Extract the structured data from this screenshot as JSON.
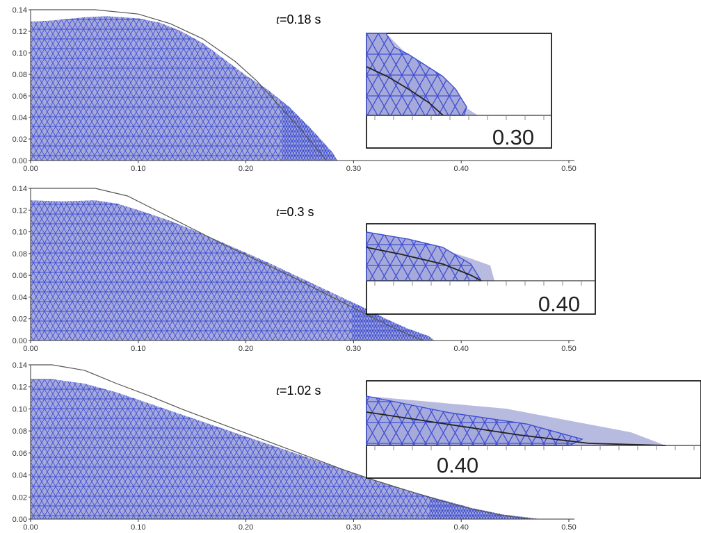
{
  "colors": {
    "fill": "#a6aadb",
    "mesh": "#3f4fd3",
    "inset_fill": "#b8bbe0",
    "reference_line": "#555555",
    "axis": "#333333"
  },
  "chart_data": [
    {
      "type": "area",
      "time_label": {
        "symbol": "t",
        "rest": "=0.18 s"
      },
      "x_ticks": [
        "0.00",
        "0.10",
        "0.20",
        "0.30",
        "0.40",
        "0.50"
      ],
      "y_ticks": [
        "0.00",
        "0.02",
        "0.04",
        "0.06",
        "0.08",
        "0.10",
        "0.12",
        "0.14"
      ],
      "xlim": [
        0,
        0.5
      ],
      "ylim": [
        0,
        0.14
      ],
      "series": [
        {
          "x": [
            0,
            0.02,
            0.05,
            0.07,
            0.1,
            0.12,
            0.14,
            0.16,
            0.18,
            0.2,
            0.22,
            0.24,
            0.26,
            0.28,
            0.285
          ],
          "y": [
            0.129,
            0.13,
            0.133,
            0.134,
            0.132,
            0.128,
            0.12,
            0.109,
            0.094,
            0.079,
            0.066,
            0.05,
            0.03,
            0.008,
            0
          ]
        },
        {
          "x": [
            0,
            0.06,
            0.1,
            0.13,
            0.16,
            0.19,
            0.21,
            0.23,
            0.25,
            0.265,
            0.275
          ],
          "y": [
            0.14,
            0.14,
            0.136,
            0.127,
            0.113,
            0.092,
            0.074,
            0.052,
            0.03,
            0.012,
            0
          ]
        }
      ],
      "inset": {
        "tick_label": "0.30"
      }
    },
    {
      "type": "area",
      "time_label": {
        "symbol": "t",
        "rest": "=0.3 s"
      },
      "x_ticks": [
        "0.00",
        "0.10",
        "0.20",
        "0.30",
        "0.40",
        "0.50"
      ],
      "y_ticks": [
        "0.00",
        "0.02",
        "0.04",
        "0.06",
        "0.08",
        "0.10",
        "0.12",
        "0.14"
      ],
      "xlim": [
        0,
        0.5
      ],
      "ylim": [
        0,
        0.14
      ],
      "series": [
        {
          "x": [
            0,
            0.03,
            0.06,
            0.08,
            0.1,
            0.13,
            0.16,
            0.19,
            0.22,
            0.25,
            0.28,
            0.31,
            0.33,
            0.35,
            0.37,
            0.375
          ],
          "y": [
            0.129,
            0.128,
            0.129,
            0.126,
            0.12,
            0.11,
            0.098,
            0.085,
            0.072,
            0.058,
            0.044,
            0.03,
            0.02,
            0.011,
            0.004,
            0
          ]
        },
        {
          "x": [
            0,
            0.06,
            0.09,
            0.12,
            0.15,
            0.18,
            0.21,
            0.24,
            0.27,
            0.3,
            0.33,
            0.35,
            0.365
          ],
          "y": [
            0.14,
            0.14,
            0.133,
            0.118,
            0.103,
            0.088,
            0.074,
            0.06,
            0.045,
            0.03,
            0.015,
            0.006,
            0
          ]
        }
      ],
      "inset": {
        "tick_label": "0.40"
      }
    },
    {
      "type": "area",
      "time_label": {
        "symbol": "t",
        "rest": "=1.02 s"
      },
      "x_ticks": [
        "0.00",
        "0.10",
        "0.20",
        "0.30",
        "0.40",
        "0.50"
      ],
      "y_ticks": [
        "0.00",
        "0.02",
        "0.04",
        "0.06",
        "0.08",
        "0.10",
        "0.12",
        "0.14"
      ],
      "xlim": [
        0,
        0.5
      ],
      "ylim": [
        0,
        0.14
      ],
      "series": [
        {
          "x": [
            0,
            0.02,
            0.05,
            0.08,
            0.11,
            0.14,
            0.17,
            0.2,
            0.23,
            0.26,
            0.29,
            0.32,
            0.35,
            0.38,
            0.41,
            0.44,
            0.47,
            0.475
          ],
          "y": [
            0.127,
            0.127,
            0.123,
            0.115,
            0.105,
            0.095,
            0.085,
            0.075,
            0.065,
            0.055,
            0.045,
            0.035,
            0.026,
            0.018,
            0.01,
            0.004,
            0.0005,
            0
          ]
        },
        {
          "x": [
            0,
            0.02,
            0.05,
            0.08,
            0.11,
            0.14,
            0.17,
            0.2,
            0.23,
            0.26,
            0.29,
            0.32,
            0.35,
            0.38,
            0.41,
            0.44,
            0.465
          ],
          "y": [
            0.14,
            0.14,
            0.135,
            0.123,
            0.112,
            0.1,
            0.089,
            0.078,
            0.067,
            0.056,
            0.045,
            0.035,
            0.026,
            0.017,
            0.009,
            0.003,
            0
          ]
        }
      ],
      "inset": {
        "tick_label": "0.40"
      }
    }
  ]
}
